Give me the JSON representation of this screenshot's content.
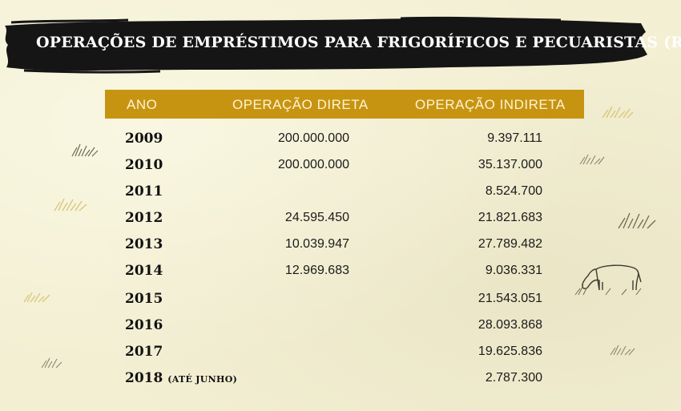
{
  "title": "OPERAÇÕES DE EMPRÉSTIMOS PARA FRIGORÍFICOS E PECUARISTAS (R$)",
  "colors": {
    "header_bg": "#c79412",
    "header_text": "#fff3d2",
    "banner": "#151515",
    "background": "#f3efd3"
  },
  "table": {
    "headers": {
      "ano": "ANO",
      "direta": "OPERAÇÃO DIRETA",
      "indireta": "OPERAÇÃO INDIRETA"
    },
    "rows": [
      {
        "ano": "2009",
        "note": "",
        "direta": "200.000.000",
        "indireta": "9.397.111"
      },
      {
        "ano": "2010",
        "note": "",
        "direta": "200.000.000",
        "indireta": "35.137.000"
      },
      {
        "ano": "2011",
        "note": "",
        "direta": "",
        "indireta": "8.524.700"
      },
      {
        "ano": "2012",
        "note": "",
        "direta": "24.595.450",
        "indireta": "21.821.683"
      },
      {
        "ano": "2013",
        "note": "",
        "direta": "10.039.947",
        "indireta": "27.789.482"
      },
      {
        "ano": "2014",
        "note": "",
        "direta": "12.969.683",
        "indireta": "9.036.331"
      },
      {
        "ano": "2015",
        "note": "",
        "direta": "",
        "indireta": "21.543.051"
      },
      {
        "ano": "2016",
        "note": "",
        "direta": "",
        "indireta": "28.093.868"
      },
      {
        "ano": "2017",
        "note": "",
        "direta": "",
        "indireta": "19.625.836"
      },
      {
        "ano": "2018",
        "note": "(ATÉ JUNHO)",
        "direta": "",
        "indireta": "2.787.300"
      }
    ]
  },
  "decorations": [
    "grass-icon",
    "cow-icon"
  ]
}
